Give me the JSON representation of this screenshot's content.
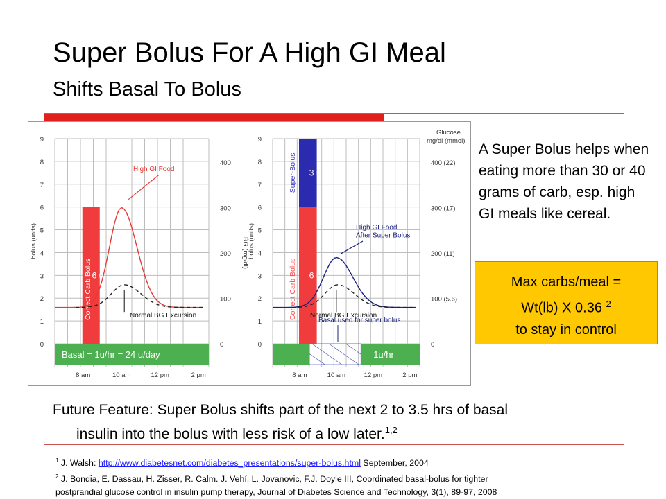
{
  "slide": {
    "title": "Super Bolus For A High GI Meal",
    "subtitle": "Shifts Basal To Bolus",
    "side_text": "A Super Bolus helps when eating more than 30 or 40 grams of carb, esp. high GI meals like cereal.",
    "box": {
      "line1": "Max carbs/meal =",
      "line2": "Wt(lb) X 0.36",
      "line2_sup": "2",
      "line3": "to stay in control"
    },
    "future": {
      "line1": "Future Feature: Super Bolus shifts part of the next 2 to 3.5 hrs of basal",
      "line2": "insulin into the bolus with less risk of a low later.",
      "line2_sup": "1,2"
    },
    "refs": {
      "r1_num": "1",
      "r1_pre": "J. Walsh: ",
      "r1_link": "http://www.diabetesnet.com/diabetes_presentations/super-bolus.html",
      "r1_post": " September, 2004",
      "r2_num": "2",
      "r2_line1": "J. Bondia, E. Dassau, H. Zisser, R. Calm. J. Vehí, L. Jovanovic, F.J. Doyle III, Coordinated basal-bolus for tighter",
      "r2_line2": "postprandial glucose control in insulin pump therapy, Journal of Diabetes Science and Technology, 3(1), 89-97, 2008"
    },
    "colors": {
      "bolus_red": "#f03c3c",
      "super_blue": "#2b2bb0",
      "basal_green": "#4caf50",
      "rule_red": "#e0201b",
      "box_yellow": "#ffc800"
    }
  },
  "chart_data": [
    {
      "type": "bar",
      "ylabel": "bolus (units)",
      "y2label": "BG (mg/dl)",
      "yticks": [
        "0",
        "1",
        "2",
        "3",
        "4",
        "5",
        "6",
        "7",
        "8",
        "9"
      ],
      "y2ticks": [
        "0",
        "100",
        "200",
        "300",
        "400"
      ],
      "xticks": [
        "8 am",
        "10 am",
        "12 pm",
        "2 pm"
      ],
      "bolus_label": "Correct Carb Bolus",
      "bolus_units": "6 u",
      "bolus_value": 6,
      "basal_label": "Basal = 1u/hr = 24 u/day",
      "curve_label": "High GI Food",
      "normal_label": "Normal BG Excursion"
    },
    {
      "type": "bar",
      "ylabel": "bolus (units)",
      "y2label": "Glucose mg/dl (mmol)",
      "y2label_line1": "Glucose",
      "y2label_line2": "mg/dl (mmol)",
      "yticks": [
        "0",
        "1",
        "2",
        "3",
        "4",
        "5",
        "6",
        "7",
        "8",
        "9"
      ],
      "y2ticks": [
        "0",
        "100 (5.6)",
        "200 (11)",
        "300 (17)",
        "400 (22)"
      ],
      "xticks": [
        "8 am",
        "10 am",
        "12 pm",
        "2 pm"
      ],
      "bolus_label": "Correct Carb Bolus",
      "bolus_units": "6 u",
      "bolus_value": 6,
      "super_label": "Super-Bolus",
      "super_units": "3 u",
      "super_value": 3,
      "basal_label": "1u/hr",
      "curve_label1": "High GI Food",
      "curve_label2": "After Super Bolus",
      "normal_label": "Normal BG Excursion",
      "basal_used_label": "Basal used for super bolus"
    }
  ]
}
